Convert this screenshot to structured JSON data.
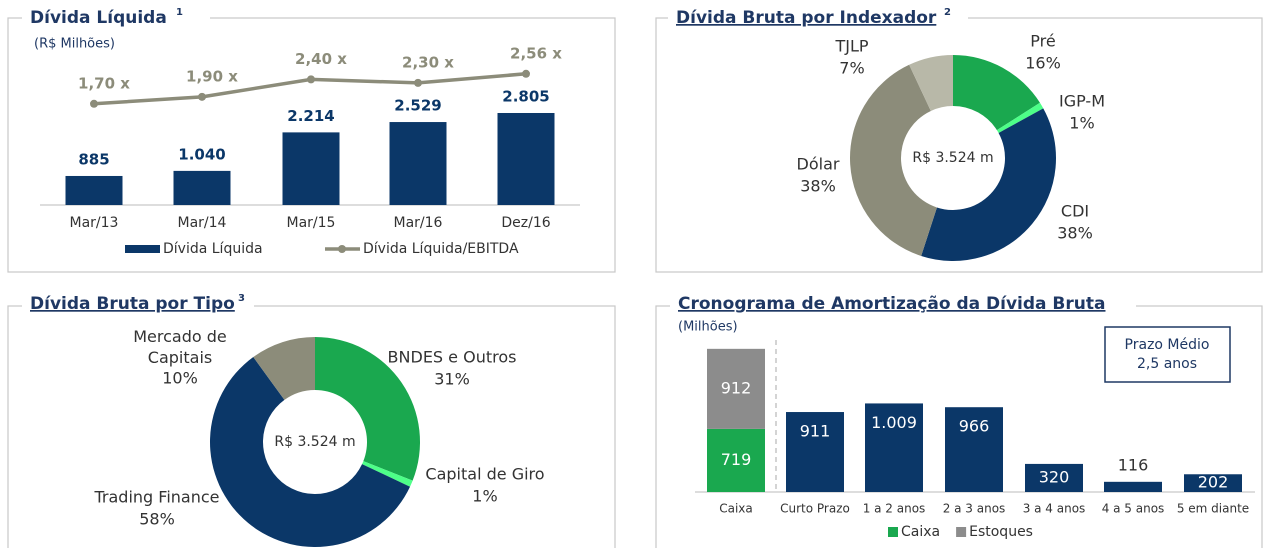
{
  "chart_data": [
    {
      "type": "bar-line",
      "title": "Dívida Líquida",
      "title_note": "1",
      "subtitle": "(R$ Milhões)",
      "categories": [
        "Mar/13",
        "Mar/14",
        "Mar/15",
        "Mar/16",
        "Dez/16"
      ],
      "series": [
        {
          "name": "Dívida Líquida",
          "color": "#0b3768",
          "values": [
            885,
            1040,
            2214,
            2529,
            2805
          ],
          "value_labels": [
            "885",
            "1.040",
            "2.214",
            "2.529",
            "2.805"
          ]
        },
        {
          "name": "Dívida Líquida/EBITDA",
          "color": "#8c8c7a",
          "axis": "y2",
          "values": [
            1.7,
            1.9,
            2.4,
            2.3,
            2.56
          ],
          "value_labels": [
            "1,70 x",
            "1,90 x",
            "2,40 x",
            "2,30 x",
            "2,56 x"
          ]
        }
      ],
      "ylim": [
        0,
        5000
      ],
      "y2lim": [
        -1.2,
        3.5
      ]
    },
    {
      "type": "donut",
      "title": "Dívida Bruta por Indexador",
      "title_note": "2",
      "center_label": "R$ 3.524 m",
      "categories": [
        "Pré",
        "IGP-M",
        "CDI",
        "Dólar",
        "TJLP"
      ],
      "values": [
        16,
        1,
        38,
        38,
        7
      ],
      "value_labels": [
        "16%",
        "1%",
        "38%",
        "38%",
        "7%"
      ],
      "colors": [
        "#1aa84f",
        "#4dff88",
        "#0b3768",
        "#8c8c7a",
        "#b8b8a8"
      ]
    },
    {
      "type": "donut",
      "title": "Dívida Bruta por Tipo",
      "title_note": "3",
      "center_label": "R$ 3.524 m",
      "categories": [
        "BNDES e Outros",
        "Capital de Giro",
        "Trading Finance",
        "Mercado de Capitais"
      ],
      "values": [
        31,
        1,
        58,
        10
      ],
      "value_labels": [
        "31%",
        "1%",
        "58%",
        "10%"
      ],
      "colors": [
        "#1aa84f",
        "#4dff88",
        "#0b3768",
        "#8c8c7a"
      ]
    },
    {
      "type": "stacked-bar",
      "title": "Cronograma de Amortização da Dívida Bruta",
      "subtitle": "(Milhões)",
      "annotation": [
        "Prazo Médio",
        "2,5 anos"
      ],
      "categories": [
        "Caixa",
        "Curto Prazo",
        "1 a 2 anos",
        "2 a 3 anos",
        "3 a 4 anos",
        "4 a 5 anos",
        "5 em diante"
      ],
      "series": [
        {
          "name": "Caixa",
          "color": "#1aa84f",
          "values": [
            719,
            null,
            null,
            null,
            null,
            null,
            null
          ]
        },
        {
          "name": "Estoques",
          "color": "#8c8c8c",
          "values": [
            912,
            null,
            null,
            null,
            null,
            null,
            null
          ]
        },
        {
          "color": "#0b3768",
          "values": [
            null,
            911,
            1009,
            966,
            320,
            116,
            202
          ],
          "value_labels": [
            null,
            "911",
            "1.009",
            "966",
            "320",
            "116",
            "202"
          ]
        }
      ],
      "ylim": [
        0,
        1800
      ]
    }
  ]
}
